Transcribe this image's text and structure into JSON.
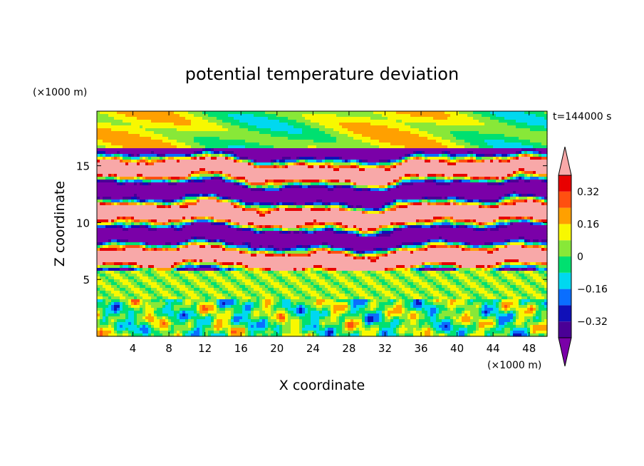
{
  "chart_data": {
    "type": "heatmap",
    "title": "potential temperature deviation",
    "xlabel": "X coordinate",
    "ylabel": "Z coordinate",
    "x_unit": "(×1000 m)",
    "y_unit": "(×1000 m)",
    "time_label": "t=144000 s",
    "xlim": [
      0,
      50
    ],
    "ylim": [
      0,
      19.8
    ],
    "x_ticks": [
      4,
      8,
      12,
      16,
      20,
      24,
      28,
      32,
      36,
      40,
      44,
      48
    ],
    "y_ticks": [
      5,
      10,
      15
    ],
    "colorbar": {
      "levels": [
        -0.4,
        -0.32,
        -0.24,
        -0.16,
        -0.08,
        0,
        0.08,
        0.16,
        0.24,
        0.32,
        0.4
      ],
      "tick_labels": [
        {
          "value": 0.32,
          "text": "0.32"
        },
        {
          "value": 0.16,
          "text": "0.16"
        },
        {
          "value": 0,
          "text": "0"
        },
        {
          "value": -0.16,
          "text": "−0.16"
        },
        {
          "value": -0.32,
          "text": "−0.32"
        }
      ],
      "colors": [
        "#7a00a8",
        "#4a0096",
        "#1010b8",
        "#0a6eff",
        "#00d8f0",
        "#00e070",
        "#88e838",
        "#f8f800",
        "#ffa000",
        "#ff5010",
        "#e80000",
        "#f8a8a8"
      ],
      "extend": "both"
    },
    "layers": [
      {
        "z_range": [
          0,
          3.2
        ],
        "character": "low-amplitude mixed field, mostly -0.16 to 0.16 with scattered deep negative cells"
      },
      {
        "z_range": [
          3.2,
          5.8
        ],
        "character": "near-zero band (0 to 0.08)"
      },
      {
        "z_range": [
          5.8,
          16.5
        ],
        "character": "alternating elongated layers of strong positive (>0.4) and strong negative (<-0.4) deviation"
      },
      {
        "z_range": [
          16.5,
          19.8
        ],
        "character": "positive-to-neutral cap (0 to 0.16)"
      }
    ]
  }
}
